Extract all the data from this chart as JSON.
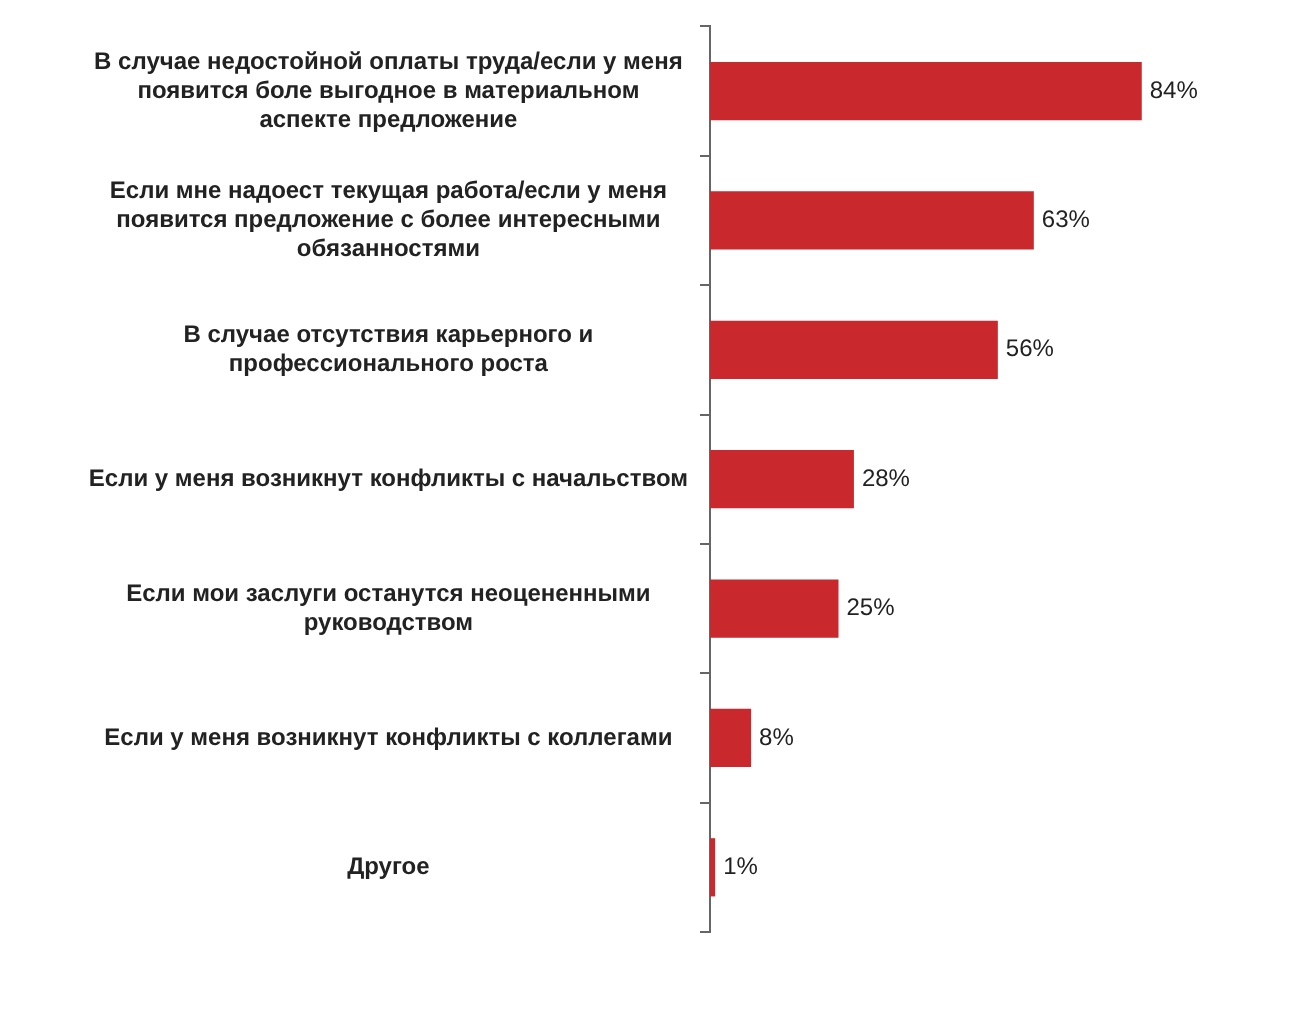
{
  "chart_data": {
    "type": "bar",
    "orientation": "horizontal",
    "categories": [
      "В случае недостойной оплаты труда/если у меня появится боле выгодное в материальном аспекте предложение",
      "Если мне надоест текущая работа/если у меня появится предложение с более интересными обязанностями",
      "В случае отсутствия карьерного и профессионального роста",
      "Если у меня возникнут конфликты с начальством",
      "Если мои заслуги останутся неоцененными руководством",
      "Если у меня возникнут конфликты с коллегами",
      "Другое"
    ],
    "values": [
      84,
      63,
      56,
      28,
      25,
      8,
      1
    ],
    "value_labels": [
      "84%",
      "63%",
      "56%",
      "28%",
      "25%",
      "8%",
      "1%"
    ],
    "color": "#c9282d",
    "legend": false
  }
}
